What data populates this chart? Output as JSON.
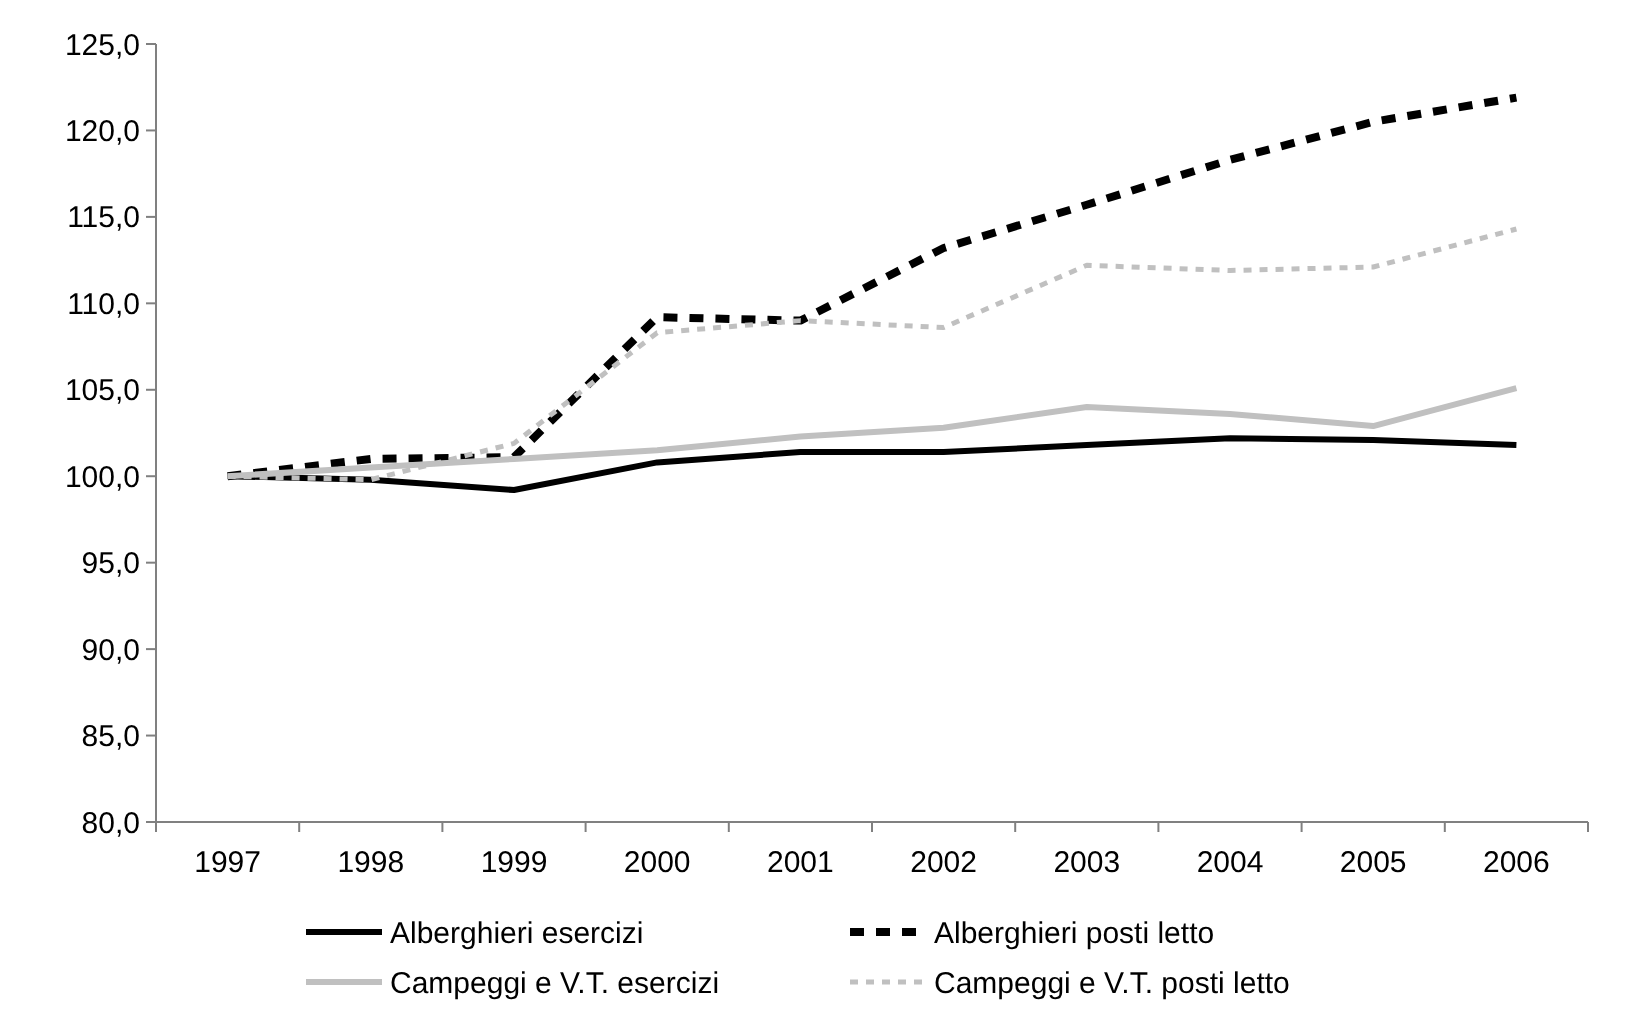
{
  "chart_data": {
    "type": "line",
    "categories": [
      "1997",
      "1998",
      "1999",
      "2000",
      "2001",
      "2002",
      "2003",
      "2004",
      "2005",
      "2006"
    ],
    "ylim": [
      80,
      125
    ],
    "yticks": [
      {
        "value": 80,
        "label": "80,0"
      },
      {
        "value": 85,
        "label": "85,0"
      },
      {
        "value": 90,
        "label": "90,0"
      },
      {
        "value": 95,
        "label": "95,0"
      },
      {
        "value": 100,
        "label": "100,0"
      },
      {
        "value": 105,
        "label": "105,0"
      },
      {
        "value": 110,
        "label": "110,0"
      },
      {
        "value": 115,
        "label": "115,0"
      },
      {
        "value": 120,
        "label": "120,0"
      },
      {
        "value": 125,
        "label": "125,0"
      }
    ],
    "grid": false,
    "legend": "bottom",
    "marker": "none",
    "series": [
      {
        "name": "Alberghieri esercizi",
        "color": "#000000",
        "line_style": "solid",
        "values": [
          100,
          99.8,
          99.2,
          100.8,
          101.4,
          101.4,
          101.8,
          102.2,
          102.1,
          101.8
        ]
      },
      {
        "name": "Alberghieri posti letto",
        "color": "#000000",
        "line_style": "dashed",
        "values": [
          100,
          101.0,
          101.1,
          109.2,
          109.0,
          113.2,
          115.7,
          118.3,
          120.5,
          121.9
        ]
      },
      {
        "name": "Campeggi e V.T. esercizi",
        "color": "#c0c0c0",
        "line_style": "solid",
        "values": [
          100,
          100.5,
          101.0,
          101.5,
          102.3,
          102.8,
          104.0,
          103.6,
          102.9,
          105.1
        ]
      },
      {
        "name": "Campeggi e V.T. posti letto",
        "color": "#c0c0c0",
        "line_style": "dotted",
        "values": [
          100,
          99.8,
          101.9,
          108.3,
          109.0,
          108.6,
          112.2,
          111.9,
          112.1,
          114.3
        ]
      }
    ]
  }
}
